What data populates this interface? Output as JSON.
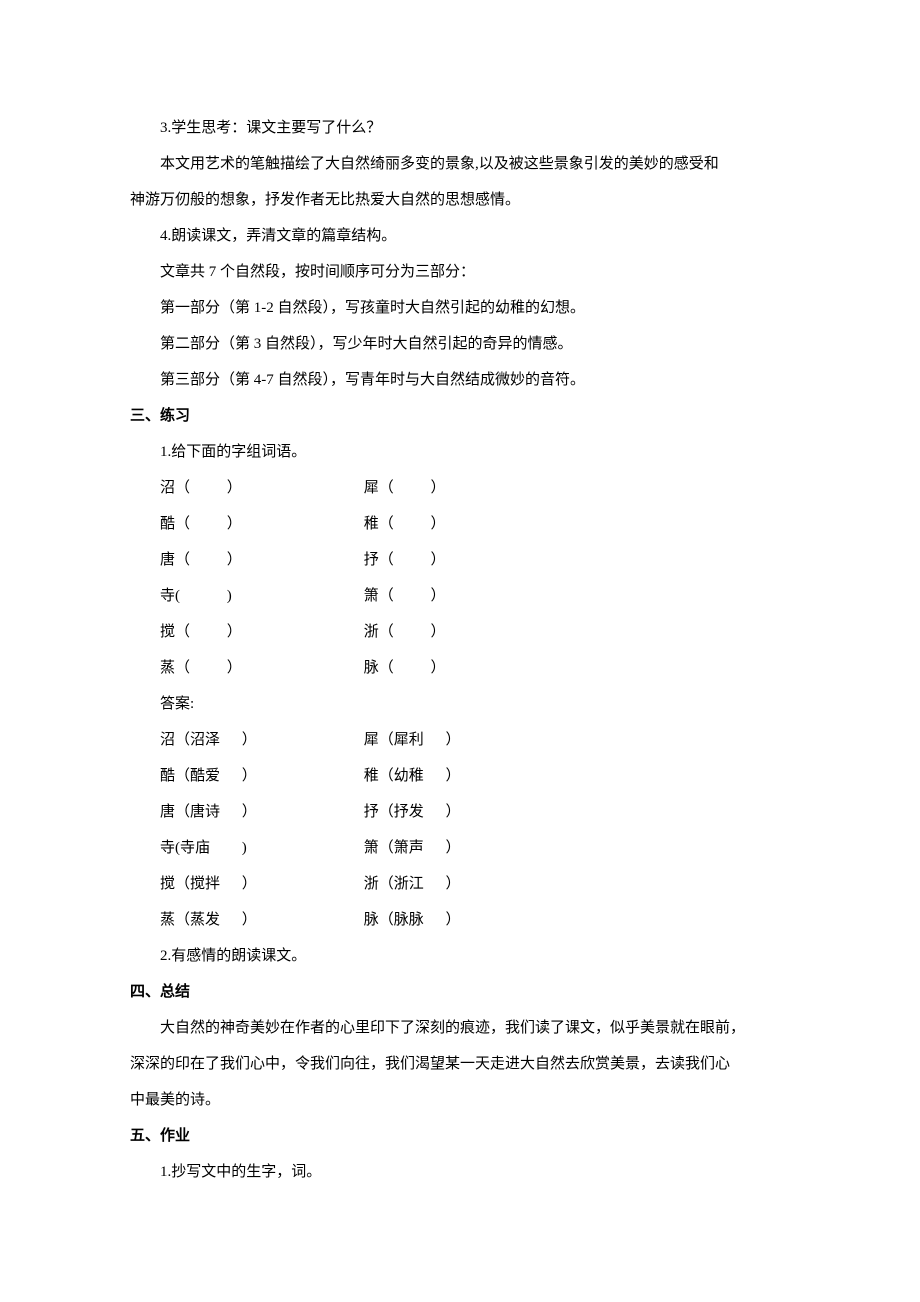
{
  "colors": {
    "background": "#ffffff",
    "text": "#000000"
  },
  "typography": {
    "font_family": "SimSun, 宋体, serif",
    "font_size_pt": 11,
    "line_height": 2.4
  },
  "section_a": {
    "line1": "3.学生思考：课文主要写了什么？",
    "line2": "本文用艺术的笔触描绘了大自然绮丽多变的景象,以及被这些景象引发的美妙的感受和",
    "line3": "神游万仞般的想象，抒发作者无比热爱大自然的思想感情。",
    "line4": "4.朗读课文，弄清文章的篇章结构。",
    "line5": "文章共 7 个自然段，按时间顺序可分为三部分：",
    "line6": "第一部分（第 1-2 自然段），写孩童时大自然引起的幼稚的幻想。",
    "line7": "第二部分（第 3 自然段），写少年时大自然引起的奇异的情感。",
    "line8": "第三部分（第 4-7 自然段），写青年时与大自然结成微妙的音符。"
  },
  "section_b": {
    "heading": "三、练习",
    "line1": "1.给下面的字组词语。",
    "pairs_question": [
      {
        "left": "沼（",
        "right": "犀（"
      },
      {
        "left": "酷（",
        "right": "稚（"
      },
      {
        "left": "唐（",
        "right": "抒（"
      },
      {
        "left": "寺(",
        "right": "箫（"
      },
      {
        "left": "搅（",
        "right": "浙（"
      },
      {
        "left": "蒸（",
        "right": "脉（"
      }
    ],
    "close_paren": "）",
    "close_paren_ascii": ")",
    "answer_label": "答案:",
    "pairs_answer": [
      {
        "left": "沼（沼泽",
        "right": "犀（犀利"
      },
      {
        "left": "酷（酷爱",
        "right": "稚（幼稚"
      },
      {
        "left": "唐（唐诗",
        "right": "抒（抒发"
      },
      {
        "left": "寺(寺庙",
        "right": "箫（箫声"
      },
      {
        "left": "搅（搅拌",
        "right": "浙（浙江"
      },
      {
        "left": "蒸（蒸发",
        "right": "脉（脉脉"
      }
    ],
    "line_last": "2.有感情的朗读课文。"
  },
  "section_c": {
    "heading": "四、总结",
    "line1": "大自然的神奇美妙在作者的心里印下了深刻的痕迹，我们读了课文，似乎美景就在眼前，",
    "line2": "深深的印在了我们心中，令我们向往，我们渴望某一天走进大自然去欣赏美景，去读我们心",
    "line3": "中最美的诗。"
  },
  "section_d": {
    "heading": "五、作业",
    "line1": "1.抄写文中的生字，词。"
  }
}
